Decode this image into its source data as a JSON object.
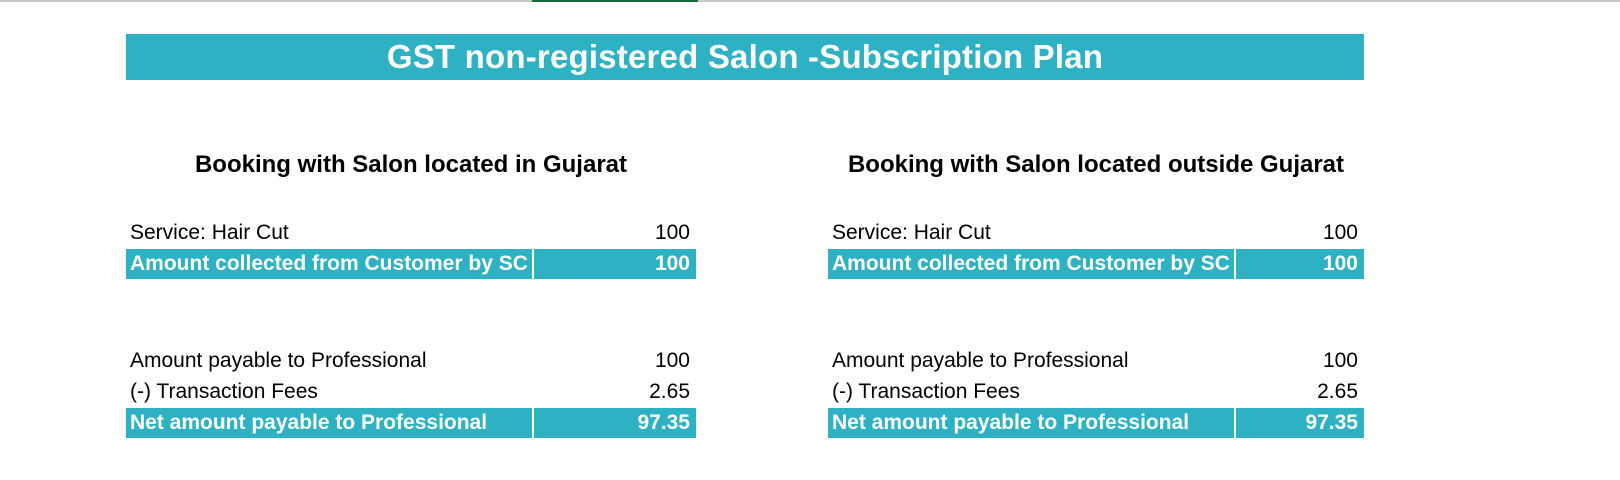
{
  "banner": {
    "title": "GST non-registered Salon -Subscription Plan"
  },
  "left": {
    "title": "Booking with Salon located in Gujarat",
    "service": {
      "label": "Service: Hair Cut",
      "value": "100"
    },
    "collected": {
      "label": "Amount collected from Customer by SC",
      "value": "100"
    },
    "payable": {
      "label": "Amount payable to Professional",
      "value": "100"
    },
    "fees": {
      "label": "(-) Transaction Fees",
      "value": "2.65"
    },
    "net": {
      "label": "Net amount payable to Professional",
      "value": "97.35"
    }
  },
  "right": {
    "title": "Booking with Salon located outside Gujarat",
    "service": {
      "label": "Service: Hair Cut",
      "value": "100"
    },
    "collected": {
      "label": "Amount collected from Customer by SC",
      "value": "100"
    },
    "payable": {
      "label": "Amount payable to Professional",
      "value": "100"
    },
    "fees": {
      "label": "(-) Transaction Fees",
      "value": "2.65"
    },
    "net": {
      "label": "Net amount payable to Professional",
      "value": "97.35"
    }
  },
  "colors": {
    "accent": "#2fb1c4",
    "tab_indicator": "#1e6b3a"
  }
}
